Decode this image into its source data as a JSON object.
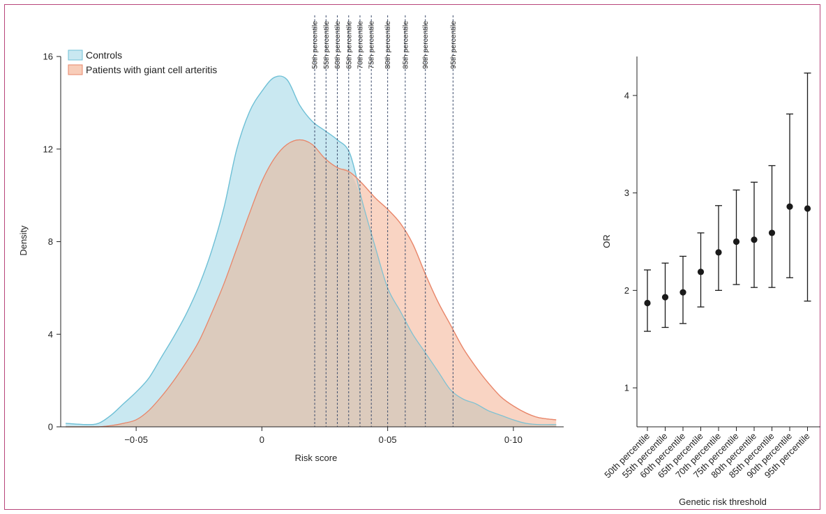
{
  "chart_data": [
    {
      "type": "area",
      "xlabel": "Risk score",
      "ylabel": "Density",
      "xlim": [
        -0.08,
        0.12
      ],
      "ylim": [
        0,
        16
      ],
      "xticks": [
        -0.05,
        0,
        0.05,
        0.1
      ],
      "xtick_labels": [
        "−0·05",
        "0",
        "0·05",
        "0·10"
      ],
      "yticks": [
        0,
        4,
        8,
        12,
        16
      ],
      "ytick_labels": [
        "0",
        "4",
        "8",
        "12",
        "16"
      ],
      "legend_position": "top-left",
      "series": [
        {
          "name": "Controls",
          "color": "#c9e8f1",
          "stroke": "#6fc0d6",
          "x": [
            -0.078,
            -0.07,
            -0.065,
            -0.06,
            -0.055,
            -0.05,
            -0.045,
            -0.04,
            -0.035,
            -0.03,
            -0.025,
            -0.02,
            -0.015,
            -0.01,
            -0.005,
            0,
            0.005,
            0.01,
            0.015,
            0.02,
            0.025,
            0.03,
            0.035,
            0.04,
            0.045,
            0.05,
            0.055,
            0.06,
            0.065,
            0.07,
            0.075,
            0.08,
            0.085,
            0.09,
            0.095,
            0.1,
            0.105,
            0.11,
            0.117
          ],
          "y": [
            0.15,
            0.1,
            0.15,
            0.5,
            1.0,
            1.5,
            2.1,
            3.0,
            3.9,
            4.9,
            6.1,
            7.6,
            9.5,
            12.0,
            13.6,
            14.5,
            15.1,
            15.0,
            13.9,
            13.2,
            12.8,
            12.4,
            11.8,
            9.7,
            7.8,
            6.0,
            5.0,
            4.0,
            3.2,
            2.4,
            1.6,
            1.2,
            1.0,
            0.7,
            0.5,
            0.3,
            0.15,
            0.1,
            0.1
          ]
        },
        {
          "name": "Patients with giant cell arteritis",
          "color": "#f8cdb9",
          "stroke": "#e8866a",
          "x": [
            -0.078,
            -0.07,
            -0.065,
            -0.06,
            -0.055,
            -0.05,
            -0.045,
            -0.04,
            -0.035,
            -0.03,
            -0.025,
            -0.02,
            -0.015,
            -0.01,
            -0.005,
            0,
            0.005,
            0.01,
            0.015,
            0.02,
            0.025,
            0.03,
            0.035,
            0.04,
            0.045,
            0.05,
            0.055,
            0.06,
            0.065,
            0.07,
            0.075,
            0.08,
            0.085,
            0.09,
            0.095,
            0.1,
            0.105,
            0.11,
            0.117
          ],
          "y": [
            0,
            0,
            0,
            0.05,
            0.15,
            0.3,
            0.7,
            1.3,
            2.0,
            2.8,
            3.7,
            4.9,
            6.2,
            7.7,
            9.2,
            10.6,
            11.6,
            12.2,
            12.4,
            12.2,
            11.6,
            11.2,
            11.0,
            10.5,
            9.9,
            9.4,
            8.8,
            7.9,
            6.6,
            5.4,
            4.4,
            3.4,
            2.6,
            1.9,
            1.3,
            0.9,
            0.6,
            0.4,
            0.3
          ]
        }
      ],
      "percentile_lines": [
        {
          "label": "50th percentile",
          "x": 0.021
        },
        {
          "label": "55th percentile",
          "x": 0.0255
        },
        {
          "label": "60th percentile",
          "x": 0.03
        },
        {
          "label": "65th percentile",
          "x": 0.0345
        },
        {
          "label": "70th percentile",
          "x": 0.039
        },
        {
          "label": "75th percentile",
          "x": 0.0435
        },
        {
          "label": "80th percentile",
          "x": 0.05
        },
        {
          "label": "85th percentile",
          "x": 0.057
        },
        {
          "label": "90th percentile",
          "x": 0.065
        },
        {
          "label": "95th percentile",
          "x": 0.076
        }
      ]
    },
    {
      "type": "scatter",
      "xlabel": "Genetic risk threshold",
      "ylabel": "OR",
      "ylim": [
        0.6,
        4.4
      ],
      "yticks": [
        1,
        2,
        3,
        4
      ],
      "ytick_labels": [
        "1",
        "2",
        "3",
        "4"
      ],
      "categories": [
        "50th percentile",
        "55th percentile",
        "60th percentile",
        "65th percentile",
        "70th percentile",
        "75th percentile",
        "80th percentile",
        "85th percentile",
        "90th percentile",
        "95th percentile"
      ],
      "series": [
        {
          "color": "#1a1a1a",
          "values": [
            1.87,
            1.93,
            1.98,
            2.19,
            2.39,
            2.5,
            2.52,
            2.59,
            2.86,
            2.84
          ],
          "ci_lower": [
            1.58,
            1.62,
            1.66,
            1.83,
            2.0,
            2.06,
            2.03,
            2.03,
            2.13,
            1.89
          ],
          "ci_upper": [
            2.21,
            2.28,
            2.35,
            2.59,
            2.87,
            3.03,
            3.11,
            3.28,
            3.81,
            4.23
          ]
        }
      ]
    }
  ]
}
